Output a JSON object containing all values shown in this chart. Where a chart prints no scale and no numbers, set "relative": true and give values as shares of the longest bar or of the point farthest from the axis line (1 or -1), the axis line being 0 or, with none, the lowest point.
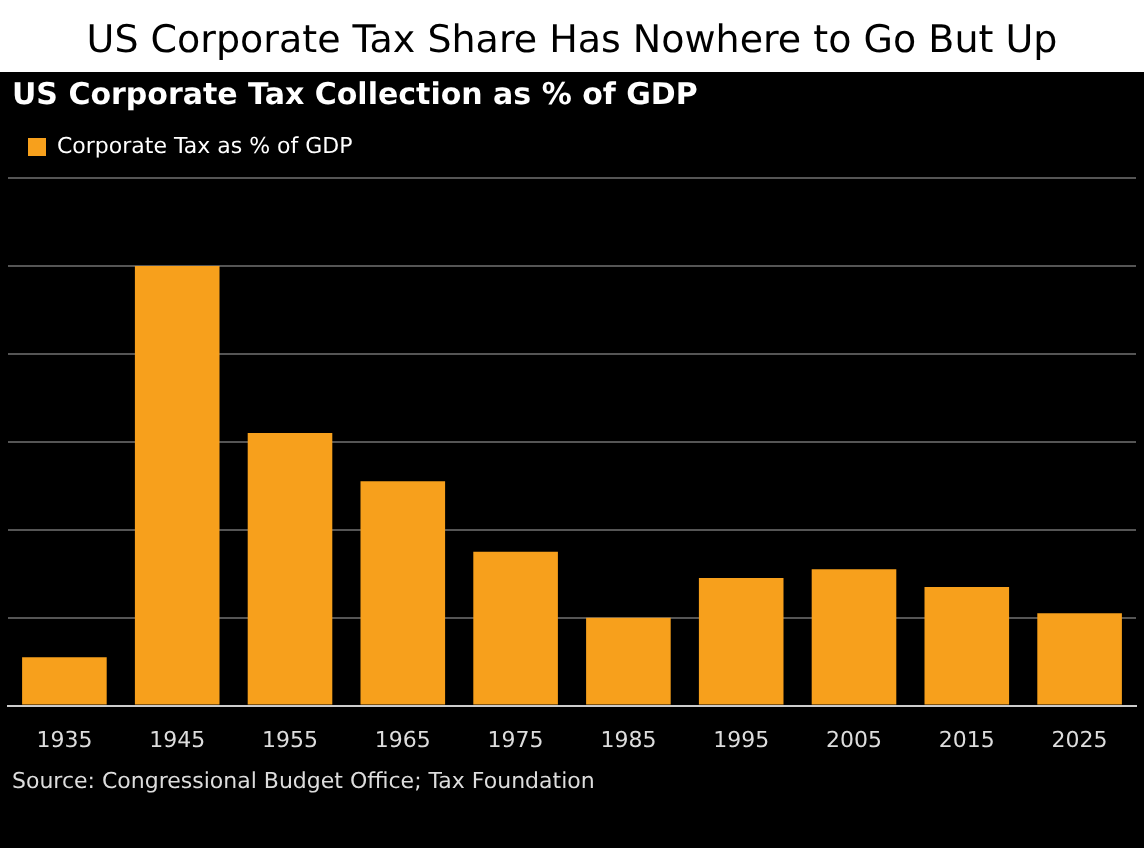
{
  "chart_data": {
    "type": "bar",
    "title": "US Corporate Tax Share Has Nowhere to Go But Up",
    "subtitle": "US Corporate Tax Collection as % of GDP",
    "categories": [
      "1935",
      "1945",
      "1955",
      "1965",
      "1975",
      "1985",
      "1995",
      "2005",
      "2015",
      "2025"
    ],
    "series": [
      {
        "name": "Corporate Tax as % of GDP",
        "color": "#f7a01c",
        "values": [
          0.11,
          1,
          0.62,
          0.51,
          0.35,
          0.2,
          0.29,
          0.31,
          0.27,
          0.21
        ]
      }
    ],
    "relative": true,
    "grid": "y",
    "legend": "top left",
    "annotations": [
      "Source: Congressional Budget Office; Tax Foundation"
    ]
  }
}
